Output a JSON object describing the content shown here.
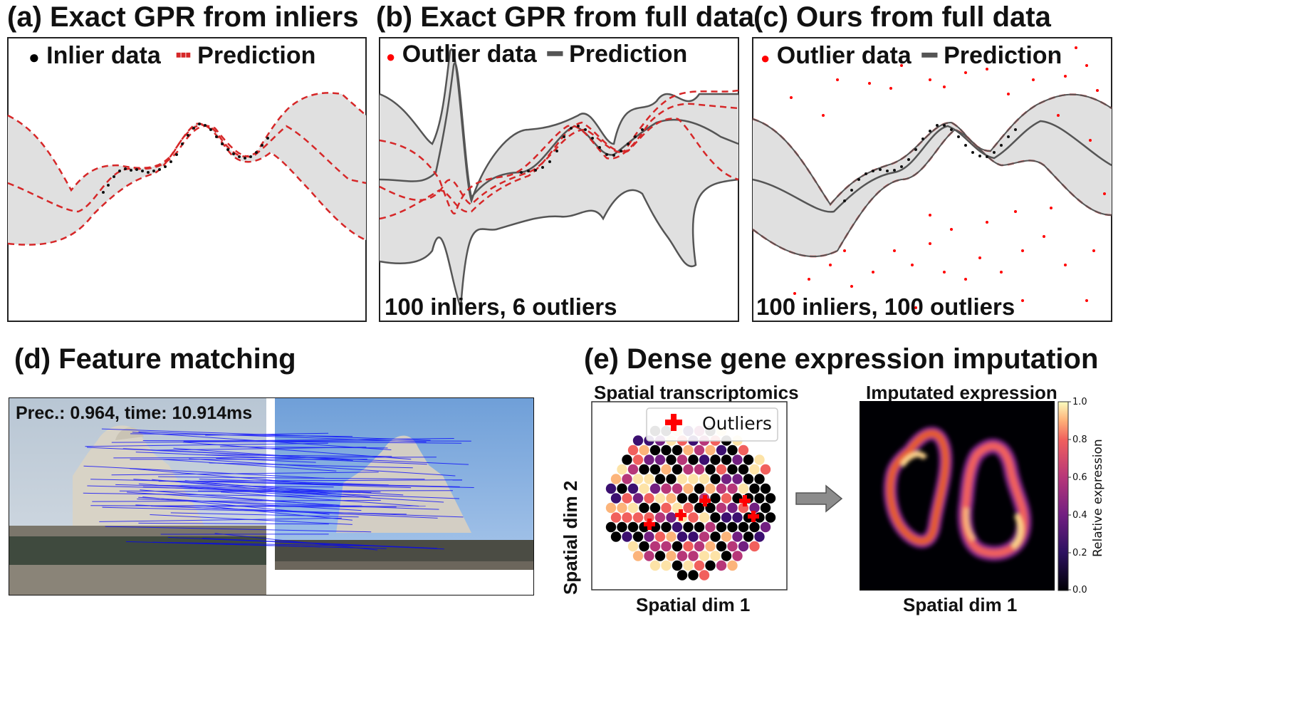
{
  "panels": {
    "a": {
      "title": "(a) Exact GPR from inliers",
      "legend": [
        {
          "marker": "●",
          "label": "Inlier data",
          "color": "#000000"
        },
        {
          "marker": "┅",
          "label": "Prediction",
          "color": "#d62728"
        }
      ]
    },
    "b": {
      "title": "(b) Exact GPR from full data",
      "legend": [
        {
          "marker": "●",
          "label": "Outlier data",
          "color": "#ff0000"
        },
        {
          "marker": "━",
          "label": "Prediction",
          "color": "#555555"
        }
      ],
      "count": "100 inliers, 6 outliers"
    },
    "c": {
      "title": "(c) Ours from full data",
      "legend": [
        {
          "marker": "●",
          "label": "Outlier data",
          "color": "#ff0000"
        },
        {
          "marker": "━",
          "label": "Prediction",
          "color": "#555555"
        }
      ],
      "count": "100 inliers, 100 outliers"
    },
    "d": {
      "title": "(d) Feature matching",
      "overlay": "Prec.: 0.964, time: 10.914ms"
    },
    "e": {
      "title": "(e) Dense gene expression imputation",
      "left_title": "Spatial transcriptomics",
      "right_title": "Imputated expression",
      "left_legend": "Outliers",
      "xlabel": "Spatial dim 1",
      "ylabel": "Spatial dim 2",
      "right_xlabel": "Spatial dim 1",
      "colorbar_label": "Relative expression",
      "colorbar_ticks": [
        "1.0",
        "0.8",
        "0.6",
        "0.4",
        "0.2",
        "0.0"
      ]
    }
  },
  "colors": {
    "band": "#e0e0e0",
    "pred_red": "#d62728",
    "pred_gray": "#555555",
    "outlier": "#ff0000",
    "match_line": "#0000ff"
  }
}
